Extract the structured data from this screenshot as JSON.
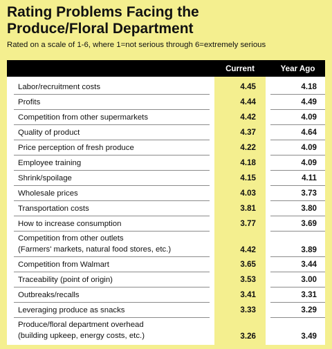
{
  "title_line1": "Rating Problems Facing the",
  "title_line2": "Produce/Floral Department",
  "subtitle": "Rated on a scale of 1-6, where 1=not serious through 6=extremely serious",
  "colors": {
    "background": "#f4ef8f",
    "header": "#000000",
    "highlight_column": "#f4ef8f"
  },
  "chart_data": {
    "type": "table",
    "columns": [
      "Current",
      "Year Ago"
    ],
    "rows": [
      {
        "label": [
          "Labor/recruitment costs"
        ],
        "current": "4.45",
        "year_ago": "4.18"
      },
      {
        "label": [
          "Profits"
        ],
        "current": "4.44",
        "year_ago": "4.49"
      },
      {
        "label": [
          "Competition from other supermarkets"
        ],
        "current": "4.42",
        "year_ago": "4.09"
      },
      {
        "label": [
          "Quality of product"
        ],
        "current": "4.37",
        "year_ago": "4.64"
      },
      {
        "label": [
          "Price perception of fresh produce"
        ],
        "current": "4.22",
        "year_ago": "4.09"
      },
      {
        "label": [
          "Employee training"
        ],
        "current": "4.18",
        "year_ago": "4.09"
      },
      {
        "label": [
          "Shrink/spoilage"
        ],
        "current": "4.15",
        "year_ago": "4.11"
      },
      {
        "label": [
          "Wholesale prices"
        ],
        "current": "4.03",
        "year_ago": "3.73"
      },
      {
        "label": [
          "Transportation costs"
        ],
        "current": "3.81",
        "year_ago": "3.80"
      },
      {
        "label": [
          "How to increase consumption"
        ],
        "current": "3.77",
        "year_ago": "3.69"
      },
      {
        "label": [
          "Competition from other outlets",
          "(Farmers' markets, natural food stores, etc.)"
        ],
        "current": "4.42",
        "year_ago": "3.89"
      },
      {
        "label": [
          "Competition from Walmart"
        ],
        "current": "3.65",
        "year_ago": "3.44"
      },
      {
        "label": [
          "Traceability (point of origin)"
        ],
        "current": "3.53",
        "year_ago": "3.00"
      },
      {
        "label": [
          "Outbreaks/recalls"
        ],
        "current": "3.41",
        "year_ago": "3.31"
      },
      {
        "label": [
          "Leveraging produce as snacks"
        ],
        "current": "3.33",
        "year_ago": "3.29"
      },
      {
        "label": [
          "Produce/floral department overhead",
          "(building upkeep, energy costs, etc.)"
        ],
        "current": "3.26",
        "year_ago": "3.49"
      }
    ]
  }
}
